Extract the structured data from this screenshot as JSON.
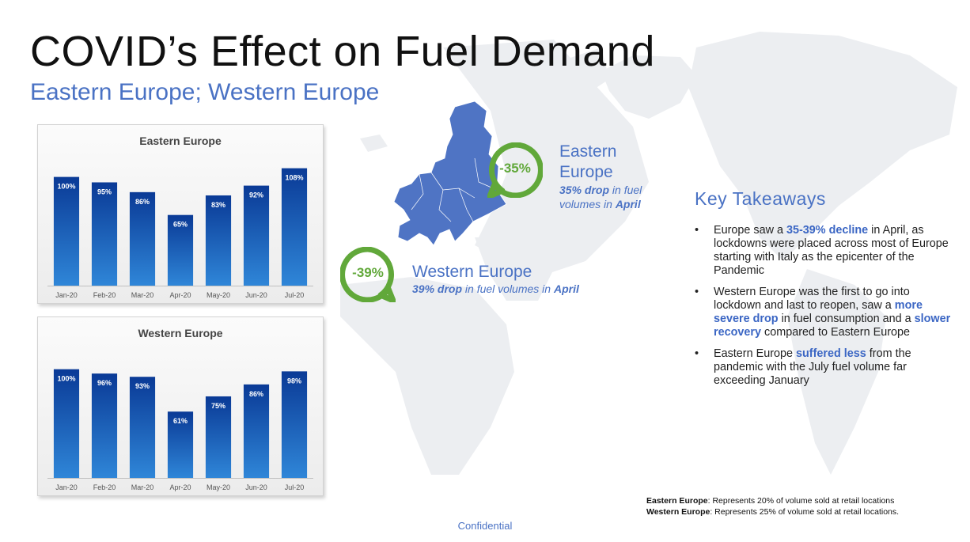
{
  "slide": {
    "title": "COVID’s Effect on Fuel Demand",
    "subtitle": "Eastern Europe; Western Europe",
    "confidential": "Confidential"
  },
  "colors": {
    "bar_top": "#0a3a96",
    "bar_bottom": "#2f86d8",
    "accent_blue": "#4a72c4",
    "badge_green": "#61a83a",
    "map_highlight": "#4f74c4",
    "map_background": "#e9ecef"
  },
  "chart_data": [
    {
      "type": "bar",
      "title": "Eastern Europe",
      "categories": [
        "Jan-20",
        "Feb-20",
        "Mar-20",
        "Apr-20",
        "May-20",
        "Jun-20",
        "Jul-20"
      ],
      "values": [
        100,
        95,
        86,
        65,
        83,
        92,
        108
      ],
      "value_labels": [
        "100%",
        "95%",
        "86%",
        "65%",
        "83%",
        "92%",
        "108%"
      ],
      "unit": "%",
      "ylim": [
        0,
        115
      ],
      "grid": false
    },
    {
      "type": "bar",
      "title": "Western Europe",
      "categories": [
        "Jan-20",
        "Feb-20",
        "Mar-20",
        "Apr-20",
        "May-20",
        "Jun-20",
        "Jul-20"
      ],
      "values": [
        100,
        96,
        93,
        61,
        75,
        86,
        98
      ],
      "value_labels": [
        "100%",
        "96%",
        "93%",
        "61%",
        "75%",
        "86%",
        "98%"
      ],
      "unit": "%",
      "ylim": [
        0,
        115
      ],
      "grid": false
    }
  ],
  "map": {
    "east": {
      "badge": "-35%",
      "name": "Eastern Europe",
      "note_value": "35% drop",
      "note_mid": " in fuel volumes in ",
      "note_month": "April"
    },
    "west": {
      "badge": "-39%",
      "name": "Western Europe",
      "note_value": "39% drop",
      "note_mid": " in fuel volumes in ",
      "note_month": "April"
    }
  },
  "takeaways": {
    "title": "Key Takeaways",
    "bullet_icon": "bullet-dot",
    "items": [
      {
        "a": "Europe saw a ",
        "b": "35-39% decline",
        "c": " in April, as lockdowns were placed across most of Europe starting with Italy as the epicenter of the Pandemic"
      },
      {
        "a": "Western Europe was the first to go into lockdown and last to reopen, saw a ",
        "b": "more severe drop",
        "c": " in fuel consumption and a ",
        "d": "slower recovery",
        "e": " compared to Eastern Europe"
      },
      {
        "a": "Eastern Europe ",
        "b": "suffered less",
        "c": " from the pandemic with the July fuel volume far exceeding January"
      }
    ]
  },
  "footnotes": [
    {
      "label": "Eastern Europe",
      "text": ": Represents 20% of volume sold at retail locations"
    },
    {
      "label": "Western Europe",
      "text": ": Represents 25% of volume sold at retail locations."
    }
  ]
}
